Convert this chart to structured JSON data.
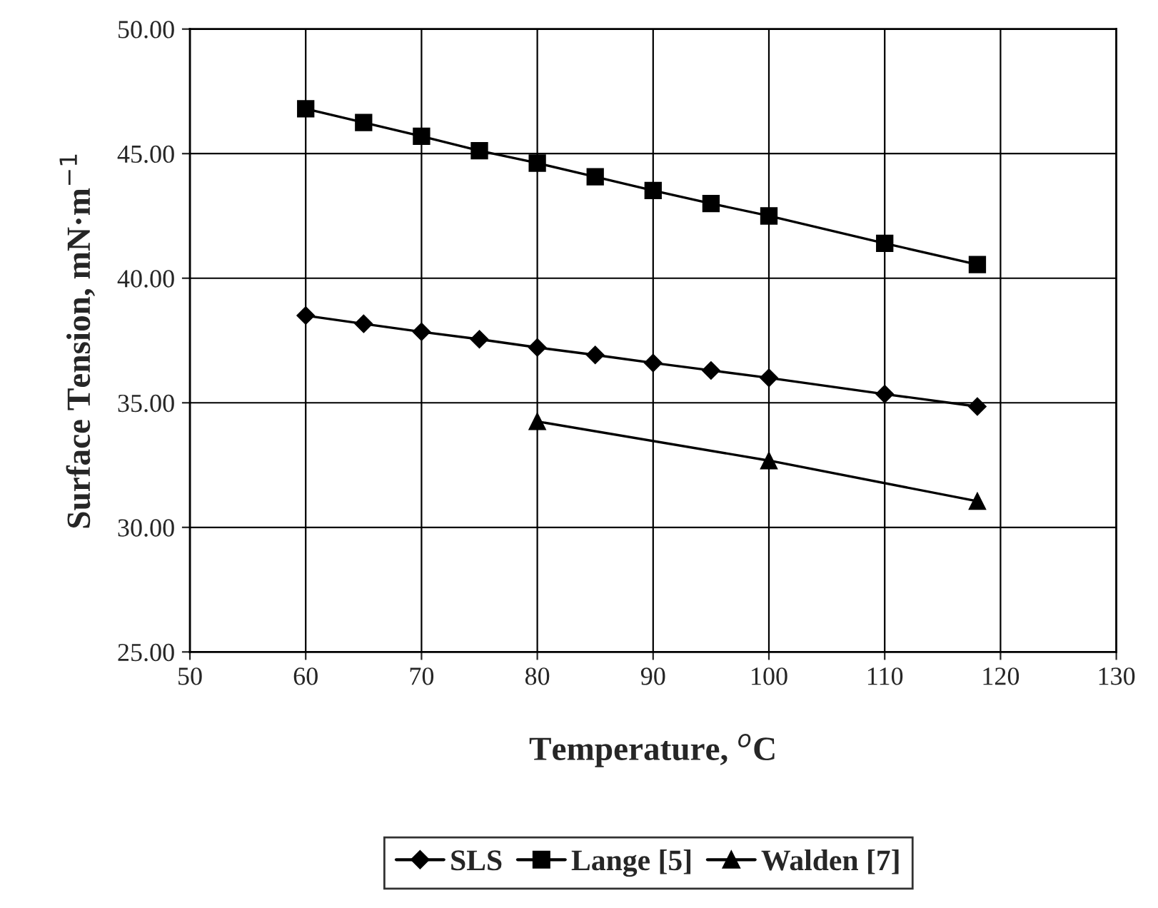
{
  "chart_data": {
    "type": "line",
    "xlabel": "Temperature, $^{o}$C",
    "ylabel": "Surface Tension, mN·m$^{−1}$",
    "xlim": [
      50,
      130
    ],
    "xticks": [
      50,
      60,
      70,
      80,
      90,
      100,
      110,
      120,
      130
    ],
    "ylim": [
      25,
      50
    ],
    "yticks": [
      {
        "value": 25,
        "label": "25.00"
      },
      {
        "value": 30,
        "label": "30.00"
      },
      {
        "value": 35,
        "label": "35.00"
      },
      {
        "value": 40,
        "label": "40.00"
      },
      {
        "value": 45,
        "label": "45.00"
      },
      {
        "value": 50,
        "label": "50.00"
      }
    ],
    "grid": true,
    "legend": "bottom",
    "line_style": "solid",
    "series": [
      {
        "name": "SLS",
        "color": "#000000",
        "marker": "diamond",
        "x": [
          60,
          65,
          70,
          75,
          80,
          85,
          90,
          95,
          100,
          110,
          118
        ],
        "values": [
          38.5,
          38.17,
          37.85,
          37.55,
          37.22,
          36.92,
          36.6,
          36.3,
          36.0,
          35.35,
          34.85
        ]
      },
      {
        "name": "Lange [5]",
        "color": "#000000",
        "marker": "square",
        "x": [
          60,
          65,
          70,
          75,
          80,
          85,
          90,
          95,
          100,
          110,
          118
        ],
        "values": [
          46.8,
          46.25,
          45.7,
          45.12,
          44.62,
          44.07,
          43.52,
          43.0,
          42.5,
          41.4,
          40.55
        ]
      },
      {
        "name": "Walden [7]",
        "color": "#000000",
        "marker": "triangle",
        "x": [
          80,
          100,
          118
        ],
        "values": [
          34.25,
          32.68,
          31.05
        ]
      }
    ]
  }
}
